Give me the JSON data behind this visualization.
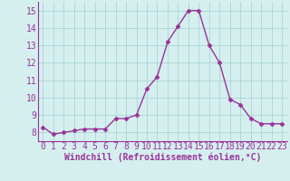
{
  "x": [
    0,
    1,
    2,
    3,
    4,
    5,
    6,
    7,
    8,
    9,
    10,
    11,
    12,
    13,
    14,
    15,
    16,
    17,
    18,
    19,
    20,
    21,
    22,
    23
  ],
  "y": [
    8.3,
    7.9,
    8.0,
    8.1,
    8.2,
    8.2,
    8.2,
    8.8,
    8.8,
    9.0,
    10.5,
    11.2,
    13.2,
    14.1,
    15.0,
    15.0,
    13.0,
    12.0,
    9.9,
    9.6,
    8.8,
    8.5,
    8.5,
    8.5
  ],
  "line_color": "#993399",
  "marker": "D",
  "marker_size": 2.5,
  "bg_color": "#d5efef",
  "grid_color": "#aad4d4",
  "xlabel": "Windchill (Refroidissement éolien,°C)",
  "xlabel_fontsize": 7.0,
  "tick_fontsize": 7.0,
  "ylim": [
    7.5,
    15.5
  ],
  "xlim": [
    -0.5,
    23.5
  ],
  "yticks": [
    8,
    9,
    10,
    11,
    12,
    13,
    14,
    15
  ],
  "xtick_labels": [
    "0",
    "1",
    "2",
    "3",
    "4",
    "5",
    "6",
    "7",
    "8",
    "9",
    "10",
    "11",
    "12",
    "13",
    "14",
    "15",
    "16",
    "17",
    "18",
    "19",
    "20",
    "21",
    "22",
    "23"
  ],
  "spine_color": "#993399",
  "linewidth": 1.0
}
